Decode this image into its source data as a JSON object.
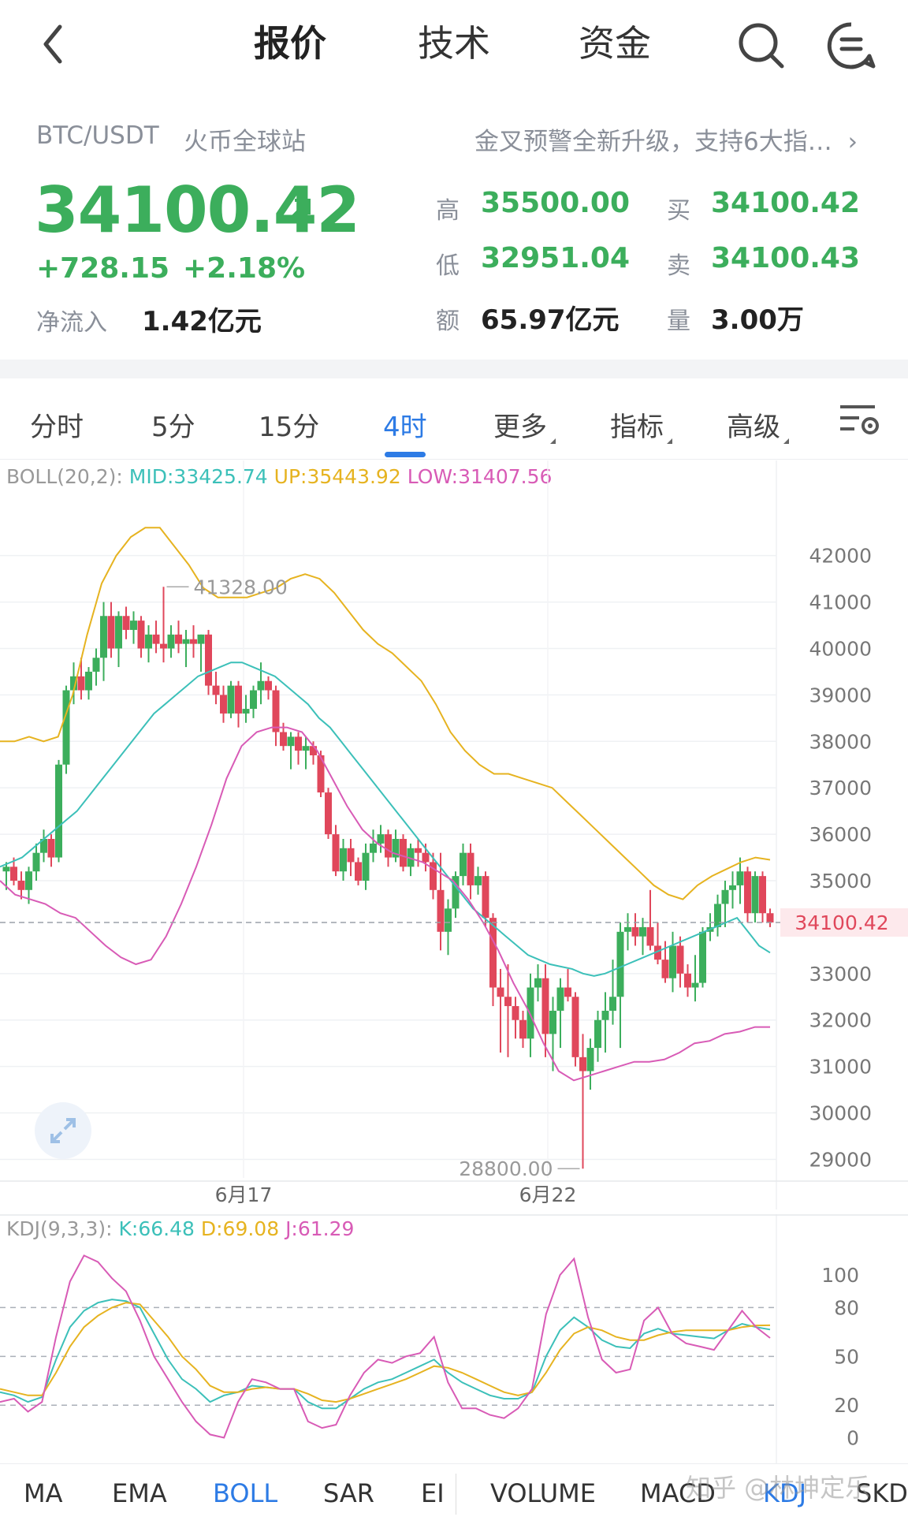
{
  "nav": {
    "tabs": [
      {
        "label": "报价",
        "active": true
      },
      {
        "label": "技术",
        "active": false
      },
      {
        "label": "资金",
        "active": false
      }
    ],
    "back_icon": "chevron-left-icon",
    "search_icon": "search-icon",
    "menu_icon": "message-menu-icon"
  },
  "ticker": {
    "pair": "BTC/USDT",
    "exchange": "火币全球站",
    "promo": "金叉预警全新升级，支持6大指…",
    "price": "34100.42",
    "trend_icon": "arrow-up-right-icon",
    "change": "+728.15",
    "change_pct": "+2.18%",
    "net_inflow_label": "净流入",
    "net_inflow": "1.42亿元",
    "stats": {
      "high_label": "高",
      "high": "35500.00",
      "low_label": "低",
      "low": "32951.04",
      "amount_label": "额",
      "amount": "65.97亿元",
      "buy_label": "买",
      "buy": "34100.42",
      "sell_label": "卖",
      "sell": "34100.43",
      "volume_label": "量",
      "volume": "3.00万"
    },
    "up_color": "#3cae5c",
    "down_color": "#e0475b"
  },
  "periods": [
    {
      "label": "分时",
      "active": false,
      "dropdown": false
    },
    {
      "label": "5分",
      "active": false,
      "dropdown": false
    },
    {
      "label": "15分",
      "active": false,
      "dropdown": false
    },
    {
      "label": "4时",
      "active": true,
      "dropdown": false
    },
    {
      "label": "更多",
      "active": false,
      "dropdown": true
    },
    {
      "label": "指标",
      "active": false,
      "dropdown": true
    },
    {
      "label": "高级",
      "active": false,
      "dropdown": true
    }
  ],
  "settings_icon": "chart-settings-icon",
  "boll": {
    "name": "BOLL(20,2):",
    "mid": "MID:33425.74",
    "up": "UP:35443.92",
    "low": "LOW:31407.56",
    "mid_color": "#3cc0b9",
    "up_color": "#e6b320",
    "low_color": "#d85bb6"
  },
  "kdj": {
    "name": "KDJ(9,3,3):",
    "k": "K:66.48",
    "d": "D:69.08",
    "j": "J:61.29"
  },
  "expand_icon": "expand-icon",
  "chart_data": [
    {
      "type": "candlestick",
      "title": "BOLL(20,2)",
      "x_ticks": [
        "6月17",
        "6月22"
      ],
      "y_ticks": [
        42000,
        41000,
        40000,
        39000,
        38000,
        37000,
        36000,
        35000,
        33000,
        32000,
        31000,
        30000,
        29000
      ],
      "ylim": [
        28600,
        43200
      ],
      "current_price_label": "34100.42",
      "current_price": 34100.42,
      "max_label": "41328.00",
      "max_value": 41328,
      "min_label": "28800.00",
      "min_value": 28800,
      "candles": [
        [
          35200,
          35400,
          34800,
          35300
        ],
        [
          35300,
          35500,
          34900,
          35000
        ],
        [
          35000,
          35200,
          34600,
          34800
        ],
        [
          34800,
          35300,
          34500,
          35200
        ],
        [
          35200,
          35800,
          35000,
          35600
        ],
        [
          35600,
          36100,
          35400,
          35900
        ],
        [
          35900,
          36000,
          35300,
          35500
        ],
        [
          35500,
          37600,
          35400,
          37500
        ],
        [
          37500,
          39200,
          37300,
          39100
        ],
        [
          39100,
          39700,
          38800,
          39400
        ],
        [
          39400,
          39800,
          38900,
          39100
        ],
        [
          39100,
          39600,
          38900,
          39500
        ],
        [
          39500,
          40000,
          39200,
          39800
        ],
        [
          39800,
          41000,
          39300,
          40700
        ],
        [
          40700,
          41000,
          39800,
          40000
        ],
        [
          40000,
          40800,
          39600,
          40700
        ],
        [
          40700,
          40900,
          40200,
          40400
        ],
        [
          40400,
          40800,
          40100,
          40600
        ],
        [
          40600,
          40700,
          39800,
          40000
        ],
        [
          40000,
          40500,
          39700,
          40300
        ],
        [
          40300,
          40600,
          39900,
          40100
        ],
        [
          40100,
          41328,
          39700,
          40000
        ],
        [
          40000,
          40500,
          39800,
          40300
        ],
        [
          40300,
          40600,
          39900,
          40100
        ],
        [
          40100,
          40400,
          39600,
          40200
        ],
        [
          40200,
          40500,
          39800,
          40100
        ],
        [
          40100,
          40300,
          39500,
          40300
        ],
        [
          40300,
          40400,
          39000,
          39200
        ],
        [
          39200,
          39500,
          38800,
          39000
        ],
        [
          39000,
          39200,
          38400,
          38600
        ],
        [
          38600,
          39300,
          38500,
          39200
        ],
        [
          39200,
          39300,
          38300,
          38600
        ],
        [
          38600,
          39000,
          38400,
          38700
        ],
        [
          38700,
          39200,
          38500,
          39100
        ],
        [
          39100,
          39700,
          38800,
          39300
        ],
        [
          39300,
          39400,
          38900,
          39100
        ],
        [
          39100,
          39200,
          37900,
          38200
        ],
        [
          38200,
          38400,
          37800,
          37900
        ],
        [
          37900,
          38200,
          37400,
          38100
        ],
        [
          38100,
          38200,
          37500,
          37800
        ],
        [
          37800,
          38100,
          37400,
          37900
        ],
        [
          37900,
          38000,
          37500,
          37700
        ],
        [
          37700,
          37800,
          36800,
          36900
        ],
        [
          36900,
          37000,
          35900,
          36000
        ],
        [
          36000,
          36200,
          35100,
          35200
        ],
        [
          35200,
          35900,
          35000,
          35700
        ],
        [
          35700,
          35900,
          35100,
          35400
        ],
        [
          35400,
          35500,
          34900,
          35000
        ],
        [
          35000,
          35800,
          34800,
          35600
        ],
        [
          35600,
          36100,
          35400,
          35800
        ],
        [
          35800,
          36200,
          35600,
          36000
        ],
        [
          36000,
          36100,
          35300,
          35500
        ],
        [
          35500,
          36100,
          35400,
          35900
        ],
        [
          35900,
          36000,
          35200,
          35300
        ],
        [
          35300,
          35800,
          35100,
          35700
        ],
        [
          35700,
          35900,
          35300,
          35600
        ],
        [
          35600,
          35800,
          35200,
          35400
        ],
        [
          35400,
          35600,
          34600,
          34800
        ],
        [
          34800,
          35600,
          33500,
          33900
        ],
        [
          33900,
          34600,
          33400,
          34400
        ],
        [
          34400,
          35200,
          34200,
          35100
        ],
        [
          35100,
          35800,
          34900,
          35600
        ],
        [
          35600,
          35800,
          34600,
          34900
        ],
        [
          34900,
          35300,
          34700,
          35100
        ],
        [
          35100,
          35200,
          34000,
          34200
        ],
        [
          34200,
          34300,
          32300,
          32700
        ],
        [
          32700,
          33100,
          31300,
          32500
        ],
        [
          32500,
          33200,
          31200,
          32300
        ],
        [
          32300,
          32500,
          31600,
          32000
        ],
        [
          32000,
          32200,
          31400,
          31600
        ],
        [
          31600,
          33000,
          31200,
          32700
        ],
        [
          32700,
          33200,
          32400,
          32900
        ],
        [
          32900,
          33200,
          31200,
          31700
        ],
        [
          31700,
          32500,
          30900,
          32200
        ],
        [
          32200,
          32900,
          31400,
          32700
        ],
        [
          32700,
          33100,
          32400,
          32500
        ],
        [
          32500,
          32600,
          31000,
          31200
        ],
        [
          31200,
          31700,
          28800,
          30900
        ],
        [
          30900,
          31600,
          30500,
          31400
        ],
        [
          31400,
          32200,
          31100,
          32000
        ],
        [
          32000,
          32600,
          31300,
          32200
        ],
        [
          32200,
          33300,
          31900,
          32500
        ],
        [
          32500,
          34100,
          31400,
          33900
        ],
        [
          33900,
          34300,
          33500,
          34000
        ],
        [
          34000,
          34300,
          33600,
          33800
        ],
        [
          33800,
          34200,
          33400,
          34000
        ],
        [
          34000,
          34800,
          33500,
          33600
        ],
        [
          33600,
          34100,
          33200,
          33300
        ],
        [
          33300,
          33700,
          32800,
          32900
        ],
        [
          32900,
          33900,
          32600,
          33600
        ],
        [
          33600,
          33800,
          32700,
          33000
        ],
        [
          33000,
          33200,
          32500,
          32700
        ],
        [
          32700,
          33400,
          32400,
          32800
        ],
        [
          32800,
          34000,
          32700,
          33900
        ],
        [
          33900,
          34300,
          33700,
          34000
        ],
        [
          34000,
          34700,
          33800,
          34500
        ],
        [
          34500,
          35000,
          34000,
          34800
        ],
        [
          34800,
          35200,
          34400,
          34900
        ],
        [
          34900,
          35500,
          34500,
          35200
        ],
        [
          35200,
          35300,
          34100,
          34300
        ],
        [
          34300,
          35200,
          34100,
          35100
        ],
        [
          35100,
          35200,
          34100,
          34300
        ],
        [
          34300,
          34400,
          34000,
          34100
        ]
      ],
      "series": [
        {
          "name": "MID",
          "color": "#3cc0b9",
          "values": [
            35300,
            35400,
            35500,
            35700,
            35900,
            36100,
            36300,
            36500,
            36800,
            37100,
            37400,
            37700,
            38000,
            38300,
            38600,
            38800,
            39000,
            39200,
            39400,
            39500,
            39600,
            39700,
            39700,
            39600,
            39500,
            39400,
            39200,
            39000,
            38800,
            38500,
            38300,
            38000,
            37700,
            37400,
            37100,
            36800,
            36500,
            36200,
            35900,
            35600,
            35300,
            35000,
            34700,
            34400,
            34200,
            34000,
            33800,
            33600,
            33400,
            33300,
            33200,
            33150,
            33100,
            33000,
            32950,
            33000,
            33100,
            33200,
            33300,
            33400,
            33500,
            33600,
            33700,
            33800,
            33900,
            34000,
            34100,
            34200,
            33900,
            33600,
            33450
          ]
        },
        {
          "name": "UP",
          "color": "#e6b320",
          "values": [
            38000,
            38000,
            38100,
            38000,
            38100,
            39000,
            40300,
            41400,
            42000,
            42400,
            42600,
            42600,
            42200,
            41800,
            41300,
            41100,
            41100,
            41100,
            41200,
            41300,
            41500,
            41600,
            41500,
            41200,
            40800,
            40400,
            40100,
            39900,
            39600,
            39300,
            38800,
            38200,
            37800,
            37500,
            37300,
            37300,
            37200,
            37100,
            37000,
            36700,
            36400,
            36100,
            35800,
            35500,
            35200,
            34900,
            34700,
            34600,
            34900,
            35100,
            35250,
            35400,
            35500,
            35450
          ]
        },
        {
          "name": "LOW",
          "color": "#d85bb6",
          "values": [
            35000,
            34700,
            34600,
            34500,
            34300,
            34200,
            33900,
            33600,
            33350,
            33200,
            33300,
            33800,
            34500,
            35300,
            36200,
            37200,
            37900,
            38200,
            38300,
            38300,
            38200,
            37800,
            37200,
            36600,
            36100,
            35800,
            35600,
            35500,
            35400,
            35200,
            35000,
            34600,
            34100,
            33500,
            32800,
            32200,
            31500,
            30900,
            30700,
            30800,
            30900,
            31000,
            31100,
            31100,
            31150,
            31300,
            31500,
            31550,
            31700,
            31750,
            31850,
            31850
          ]
        }
      ]
    },
    {
      "type": "line",
      "title": "KDJ(9,3,3)",
      "y_ticks": [
        100,
        80,
        50,
        20,
        0
      ],
      "ylim": [
        -8,
        118
      ],
      "dashed_levels": [
        80,
        50,
        20
      ],
      "series": [
        {
          "name": "K",
          "color": "#3cc0b9",
          "values": [
            28,
            26,
            22,
            25,
            48,
            68,
            78,
            83,
            85,
            84,
            80,
            64,
            48,
            36,
            30,
            22,
            26,
            28,
            32,
            31,
            30,
            30,
            22,
            18,
            18,
            24,
            30,
            34,
            36,
            40,
            44,
            48,
            40,
            34,
            30,
            26,
            24,
            24,
            28,
            50,
            66,
            74,
            68,
            60,
            56,
            55,
            64,
            67,
            64,
            63,
            62,
            61,
            66,
            70,
            68,
            66.48
          ]
        },
        {
          "name": "D",
          "color": "#e6b320",
          "values": [
            30,
            28,
            26,
            26,
            40,
            56,
            68,
            75,
            80,
            83,
            82,
            72,
            62,
            50,
            42,
            32,
            28,
            28,
            30,
            31,
            30,
            30,
            27,
            23,
            22,
            24,
            27,
            30,
            33,
            36,
            40,
            44,
            43,
            40,
            36,
            32,
            28,
            26,
            28,
            40,
            54,
            64,
            68,
            66,
            62,
            60,
            60,
            63,
            65,
            66,
            66,
            66,
            66,
            68,
            69,
            69.08
          ]
        },
        {
          "name": "J",
          "color": "#d85bb6",
          "values": [
            22,
            24,
            16,
            22,
            62,
            96,
            112,
            108,
            98,
            90,
            72,
            50,
            36,
            22,
            10,
            2,
            0,
            22,
            36,
            34,
            30,
            30,
            10,
            6,
            8,
            26,
            40,
            48,
            46,
            50,
            52,
            62,
            34,
            18,
            18,
            14,
            12,
            18,
            30,
            76,
            100,
            110,
            74,
            48,
            40,
            42,
            72,
            80,
            64,
            58,
            56,
            54,
            66,
            78,
            68,
            61.29
          ]
        }
      ]
    }
  ],
  "indicator_tabs": [
    {
      "label": "MA",
      "active": false
    },
    {
      "label": "EMA",
      "active": false
    },
    {
      "label": "BOLL",
      "active": true
    },
    {
      "label": "SAR",
      "active": false
    },
    {
      "label": "EI",
      "active": false
    },
    {
      "label": "VOLUME",
      "active": false
    },
    {
      "label": "MACD",
      "active": false
    },
    {
      "label": "KDJ",
      "active": true
    },
    {
      "label": "SKD",
      "active": false
    }
  ],
  "watermark": "知乎 @林坤定乐"
}
